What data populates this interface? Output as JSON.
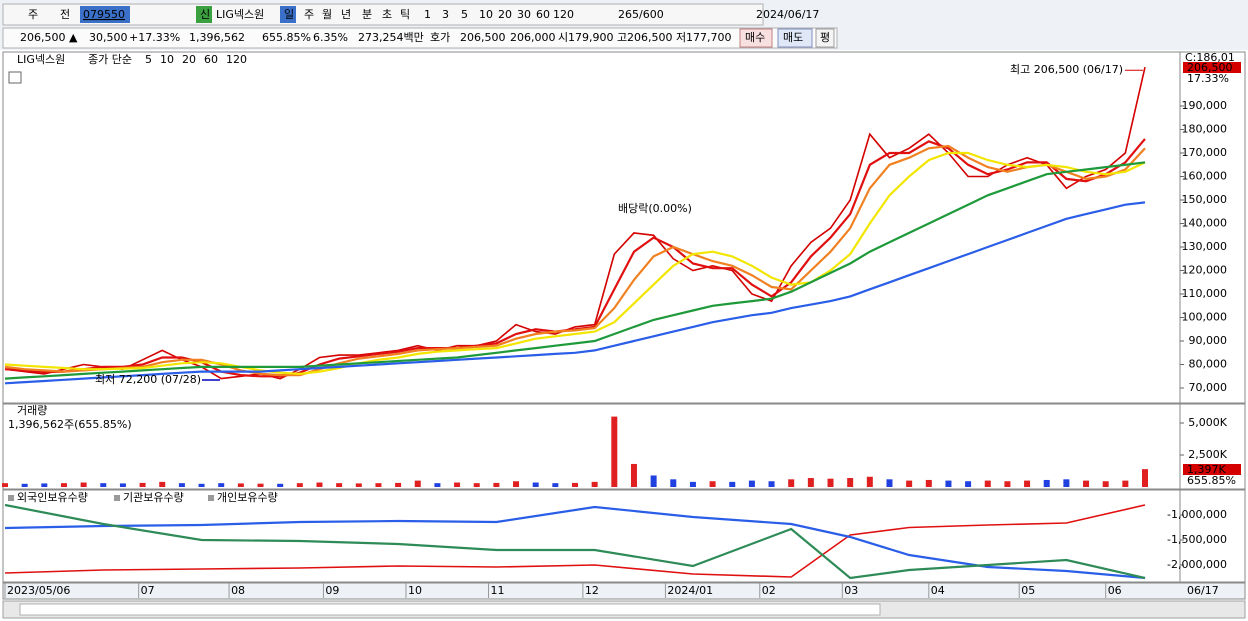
{
  "toolbar": [
    "주",
    "전",
    "079550",
    "신",
    "LIG넥스원",
    "일",
    "주",
    "월",
    "년",
    "분",
    "초",
    "틱",
    "1",
    "3",
    "5",
    "10",
    "20",
    "30",
    "60",
    "120",
    "265/600",
    "2024/06/17"
  ],
  "quote_bar": [
    "206,500 ▲",
    "30,500",
    "+17.33%",
    "1,396,562",
    "655.85%",
    "6.35%",
    "273,254백만",
    "호가",
    "206,500",
    "206,000",
    "시",
    "179,900",
    "고",
    "206,500",
    "저",
    "177,700",
    "매수",
    "매도",
    "평"
  ],
  "price_chart": {
    "type": "line",
    "ma_label": "종가 단순",
    "x": [
      0,
      1,
      2,
      3,
      4,
      5,
      6,
      7,
      8,
      9,
      10,
      11,
      12,
      13,
      14,
      15,
      16,
      17,
      18,
      19,
      20,
      21,
      22,
      23,
      24,
      25,
      26,
      27,
      28,
      29,
      30,
      31,
      32,
      33,
      34,
      35,
      36,
      37,
      38,
      39,
      40,
      41,
      42,
      43,
      44,
      45,
      46,
      47,
      48,
      49,
      50,
      51,
      52,
      53,
      54,
      55,
      56,
      57,
      58
    ],
    "xlim": [
      0,
      58
    ],
    "ylim": [
      64900,
      211700
    ],
    "yticks": [
      {
        "value": 70000,
        "label": "70,000"
      },
      {
        "value": 80000,
        "label": "80,000"
      },
      {
        "value": 90000,
        "label": "90,000"
      },
      {
        "value": 100000,
        "label": "100,000"
      },
      {
        "value": 110000,
        "label": "110,000"
      },
      {
        "value": 120000,
        "label": "120,000"
      },
      {
        "value": 130000,
        "label": "130,000"
      },
      {
        "value": 140000,
        "label": "140,000"
      },
      {
        "value": 150000,
        "label": "150,000"
      },
      {
        "value": 160000,
        "label": "160,000"
      },
      {
        "value": 170000,
        "label": "170,000"
      },
      {
        "value": 180000,
        "label": "180,000"
      },
      {
        "value": 190000,
        "label": "190,000"
      }
    ],
    "series": [
      {
        "name": "LIG넥스원",
        "color": "#d40000",
        "values": [
          78000,
          77000,
          76000,
          78000,
          80000,
          79000,
          78000,
          82000,
          86000,
          82000,
          79000,
          74000,
          75000,
          76000,
          74000,
          78000,
          83000,
          84000,
          84000,
          85000,
          86000,
          88000,
          86000,
          88000,
          88000,
          90000,
          97000,
          94000,
          93000,
          96000,
          97000,
          127000,
          136000,
          135000,
          125000,
          120000,
          122000,
          120000,
          110000,
          107000,
          122000,
          132000,
          138000,
          150000,
          178000,
          168000,
          172000,
          178000,
          170000,
          160000,
          160000,
          165000,
          168000,
          165000,
          155000,
          160000,
          163000,
          170000,
          206500
        ]
      },
      {
        "name": "5",
        "color": "#e01010",
        "values": [
          78000,
          77500,
          76800,
          77000,
          78000,
          79000,
          79000,
          80000,
          83000,
          83000,
          81000,
          77000,
          75500,
          75000,
          75000,
          76500,
          80000,
          82500,
          83500,
          84500,
          85500,
          87000,
          87000,
          87000,
          88000,
          89000,
          93000,
          95000,
          94000,
          95000,
          96000,
          112000,
          128000,
          134000,
          130000,
          123000,
          121000,
          121000,
          114000,
          109000,
          115000,
          126000,
          134000,
          144000,
          165000,
          170000,
          170000,
          175000,
          172000,
          165000,
          161000,
          163000,
          166000,
          166000,
          159000,
          158000,
          161000,
          166000,
          176000
        ]
      },
      {
        "name": "10",
        "color": "#f08020",
        "values": [
          79000,
          78000,
          77500,
          77000,
          77500,
          78000,
          78500,
          79000,
          81000,
          82000,
          82000,
          80000,
          77500,
          76000,
          75500,
          75500,
          78000,
          80500,
          82500,
          83500,
          84500,
          86000,
          86500,
          87000,
          87500,
          88000,
          91000,
          93000,
          94000,
          94500,
          95500,
          104000,
          116000,
          126000,
          130000,
          127000,
          124000,
          122000,
          118000,
          113000,
          112000,
          120000,
          128000,
          138000,
          155000,
          165000,
          168000,
          172000,
          173000,
          168000,
          164000,
          162000,
          164000,
          165000,
          162000,
          159000,
          160000,
          163000,
          172000
        ]
      },
      {
        "name": "20",
        "color": "#f2e600",
        "values": [
          80000,
          79500,
          79000,
          78500,
          78000,
          78000,
          78200,
          78500,
          79500,
          80500,
          81000,
          80500,
          79000,
          77500,
          76500,
          76000,
          77000,
          78500,
          80500,
          82000,
          83000,
          84500,
          85500,
          86000,
          86500,
          87000,
          89000,
          91000,
          92000,
          93000,
          94000,
          98000,
          106000,
          114000,
          122000,
          127000,
          128000,
          126000,
          122000,
          117000,
          114000,
          115000,
          120000,
          127000,
          140000,
          152000,
          160000,
          167000,
          170000,
          170000,
          167000,
          165000,
          164000,
          165000,
          164000,
          162000,
          161000,
          162000,
          166000
        ]
      },
      {
        "name": "60",
        "color": "#1e9a3a",
        "values": [
          74000,
          74500,
          75000,
          75500,
          76000,
          76500,
          77000,
          77500,
          78000,
          78500,
          79000,
          79000,
          79000,
          79000,
          79000,
          79000,
          79500,
          80000,
          80500,
          81000,
          81500,
          82000,
          82500,
          83000,
          84000,
          85000,
          86000,
          87000,
          88000,
          89000,
          90000,
          93000,
          96000,
          99000,
          101000,
          103000,
          105000,
          106000,
          107000,
          108000,
          111000,
          115000,
          119000,
          123000,
          128000,
          132000,
          136000,
          140000,
          144000,
          148000,
          152000,
          155000,
          158000,
          161000,
          162000,
          163000,
          164000,
          165000,
          166000
        ]
      },
      {
        "name": "120",
        "color": "#2a5ee8",
        "values": [
          72000,
          72500,
          73000,
          73500,
          74000,
          74500,
          75000,
          75500,
          76000,
          76500,
          77000,
          77000,
          77000,
          77000,
          77500,
          78000,
          78500,
          79000,
          79500,
          80000,
          80500,
          81000,
          81500,
          82000,
          82500,
          83000,
          83500,
          84000,
          84500,
          85000,
          86000,
          88000,
          90000,
          92000,
          94000,
          96000,
          98000,
          99500,
          101000,
          102000,
          104000,
          105500,
          107000,
          109000,
          112000,
          115000,
          118000,
          121000,
          124000,
          127000,
          130000,
          133000,
          136000,
          139000,
          142000,
          144000,
          146000,
          148000,
          149000
        ]
      }
    ],
    "c_label": "C:186,01",
    "current_label": "206,500",
    "change_label": "17.33%",
    "annotations": {
      "high": "최고 206,500 (06/17)",
      "low": "최저 72,200 (07/28)",
      "dividend": "배당락(0.00%)"
    }
  },
  "volume_chart": {
    "type": "bar",
    "title": "거래량",
    "summary": "1,396,562주(655.85%)",
    "values": [
      300000,
      250000,
      280000,
      300000,
      350000,
      300000,
      280000,
      320000,
      400000,
      300000,
      250000,
      300000,
      280000,
      260000,
      250000,
      300000,
      350000,
      300000,
      280000,
      300000,
      320000,
      500000,
      300000,
      350000,
      300000,
      320000,
      450000,
      350000,
      300000,
      320000,
      400000,
      5500000,
      1800000,
      900000,
      600000,
      400000,
      450000,
      400000,
      500000,
      450000,
      600000,
      700000,
      650000,
      700000,
      800000,
      600000,
      500000,
      550000,
      500000,
      450000,
      500000,
      450000,
      500000,
      550000,
      600000,
      500000,
      450000,
      500000,
      1396562
    ],
    "ylim": [
      0,
      6250000
    ],
    "yticks": [
      {
        "value": 2500000,
        "label": "2,500K"
      },
      {
        "value": 5000000,
        "label": "5,000K"
      }
    ],
    "current_label": "1,397K",
    "ratio_label": "655.85%",
    "up_color": "#e02020",
    "down_color": "#2040e0"
  },
  "holdings_chart": {
    "type": "line",
    "x": [
      0,
      5,
      10,
      15,
      20,
      25,
      30,
      35,
      40,
      43,
      46,
      50,
      54,
      58
    ],
    "xlim": [
      0,
      58
    ],
    "ylim": [
      -2340000,
      -540000
    ],
    "yticks": [
      {
        "value": -1000000,
        "label": "-1,000,000"
      },
      {
        "value": -1500000,
        "label": "-1,500,000"
      },
      {
        "value": -2000000,
        "label": "-2,000,000"
      }
    ],
    "series": [
      {
        "name": "외국인보유수량",
        "color": "#e01010",
        "values": [
          -2160000,
          -2100000,
          -2080000,
          -2060000,
          -2020000,
          -2040000,
          -2000000,
          -2180000,
          -2240000,
          -1400000,
          -1250000,
          -1200000,
          -1160000,
          -800000
        ]
      },
      {
        "name": "기관보유수량",
        "color": "#2a5ee8",
        "values": [
          -1260000,
          -1220000,
          -1200000,
          -1140000,
          -1120000,
          -1140000,
          -840000,
          -1040000,
          -1180000,
          -1440000,
          -1800000,
          -2040000,
          -2120000,
          -2260000
        ]
      },
      {
        "name": "개인보유수량",
        "color": "#2e8b57",
        "values": [
          -800000,
          -1180000,
          -1500000,
          -1520000,
          -1580000,
          -1700000,
          -1700000,
          -2020000,
          -1280000,
          -2260000,
          -2100000,
          -2000000,
          -1900000,
          -2260000
        ]
      }
    ]
  },
  "x_axis": {
    "ticks": [
      {
        "value": 0,
        "label": "2023/05/06"
      },
      {
        "value": 6.8,
        "label": "07"
      },
      {
        "value": 11.4,
        "label": "08"
      },
      {
        "value": 16.2,
        "label": "09"
      },
      {
        "value": 20.4,
        "label": "10"
      },
      {
        "value": 24.6,
        "label": "11"
      },
      {
        "value": 29.4,
        "label": "12"
      },
      {
        "value": 33.6,
        "label": "2024/01"
      },
      {
        "value": 38.4,
        "label": "02"
      },
      {
        "value": 42.6,
        "label": "03"
      },
      {
        "value": 47,
        "label": "04"
      },
      {
        "value": 51.6,
        "label": "05"
      },
      {
        "value": 56,
        "label": "06"
      }
    ],
    "end_label": "06/17"
  }
}
